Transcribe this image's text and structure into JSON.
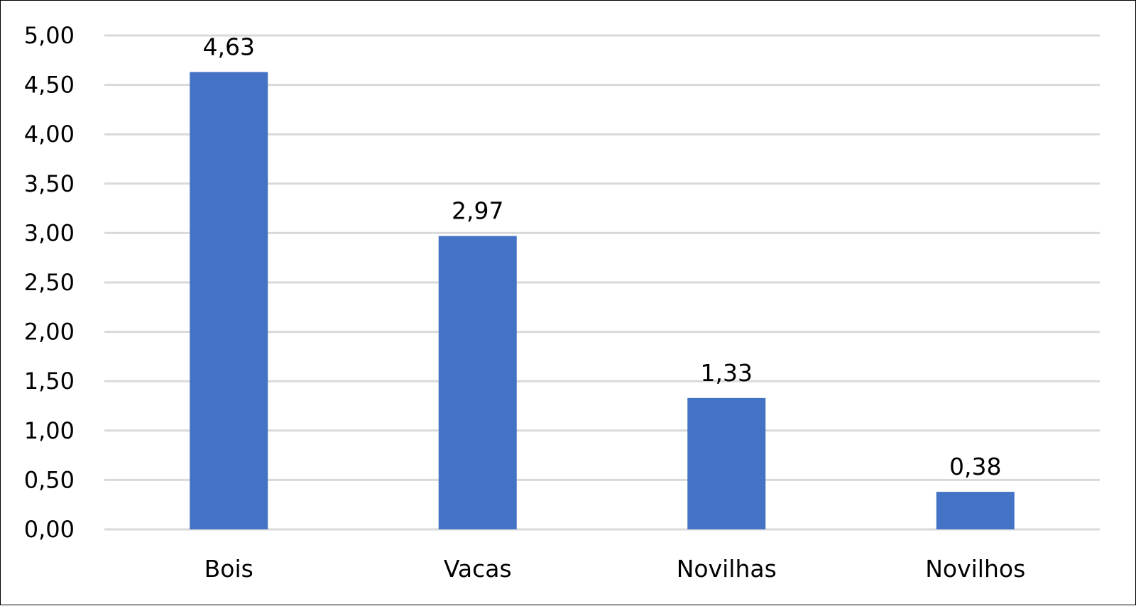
{
  "chart_data": {
    "type": "bar",
    "title": "",
    "xlabel": "",
    "ylabel": "",
    "categories": [
      "Bois",
      "Vacas",
      "Novilhas",
      "Novilhos"
    ],
    "values": [
      4.63,
      2.97,
      1.33,
      0.38
    ],
    "data_labels": [
      "4,63",
      "2,97",
      "1,33",
      "0,38"
    ],
    "ylim": [
      0,
      5
    ],
    "yticks": [
      0,
      0.5,
      1,
      1.5,
      2,
      2.5,
      3,
      3.5,
      4,
      4.5,
      5
    ],
    "ytick_labels": [
      "0,00",
      "0,50",
      "1,00",
      "1,50",
      "2,00",
      "2,50",
      "3,00",
      "3,50",
      "4,00",
      "4,50",
      "5,00"
    ],
    "grid": true,
    "legend": "none",
    "bar_color": "#4472C4",
    "grid_color": "#D9D9D9"
  }
}
